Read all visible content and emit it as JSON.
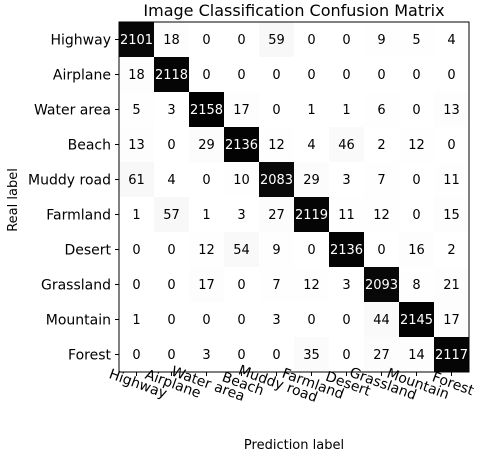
{
  "chart_data": {
    "type": "heatmap",
    "title": "Image Classification Confusion Matrix",
    "xlabel": "Prediction label",
    "ylabel": "Real label",
    "x_categories": [
      "Highway",
      "Airplane",
      "Water area",
      "Beach",
      "Muddy road",
      "Farmland",
      "Desert",
      "Grassland",
      "Mountain",
      "Forest"
    ],
    "y_categories": [
      "Highway",
      "Airplane",
      "Water area",
      "Beach",
      "Muddy road",
      "Farmland",
      "Desert",
      "Grassland",
      "Mountain",
      "Forest"
    ],
    "values": [
      [
        2101,
        18,
        0,
        0,
        59,
        0,
        0,
        9,
        5,
        4
      ],
      [
        18,
        2118,
        0,
        0,
        0,
        0,
        0,
        0,
        0,
        0
      ],
      [
        5,
        3,
        2158,
        17,
        0,
        1,
        1,
        6,
        0,
        13
      ],
      [
        13,
        0,
        29,
        2136,
        12,
        4,
        46,
        2,
        12,
        0
      ],
      [
        61,
        4,
        0,
        10,
        2083,
        29,
        3,
        7,
        0,
        11
      ],
      [
        1,
        57,
        1,
        3,
        27,
        2119,
        11,
        12,
        0,
        15
      ],
      [
        0,
        0,
        12,
        54,
        9,
        0,
        2136,
        0,
        16,
        2
      ],
      [
        0,
        0,
        17,
        0,
        7,
        12,
        3,
        2093,
        8,
        21
      ],
      [
        1,
        0,
        0,
        0,
        3,
        0,
        0,
        44,
        2145,
        17
      ],
      [
        0,
        0,
        3,
        0,
        0,
        35,
        0,
        27,
        14,
        2117
      ]
    ],
    "colormap": "greys",
    "color_low": "#ffffff",
    "color_high": "#000000",
    "grid": false
  }
}
